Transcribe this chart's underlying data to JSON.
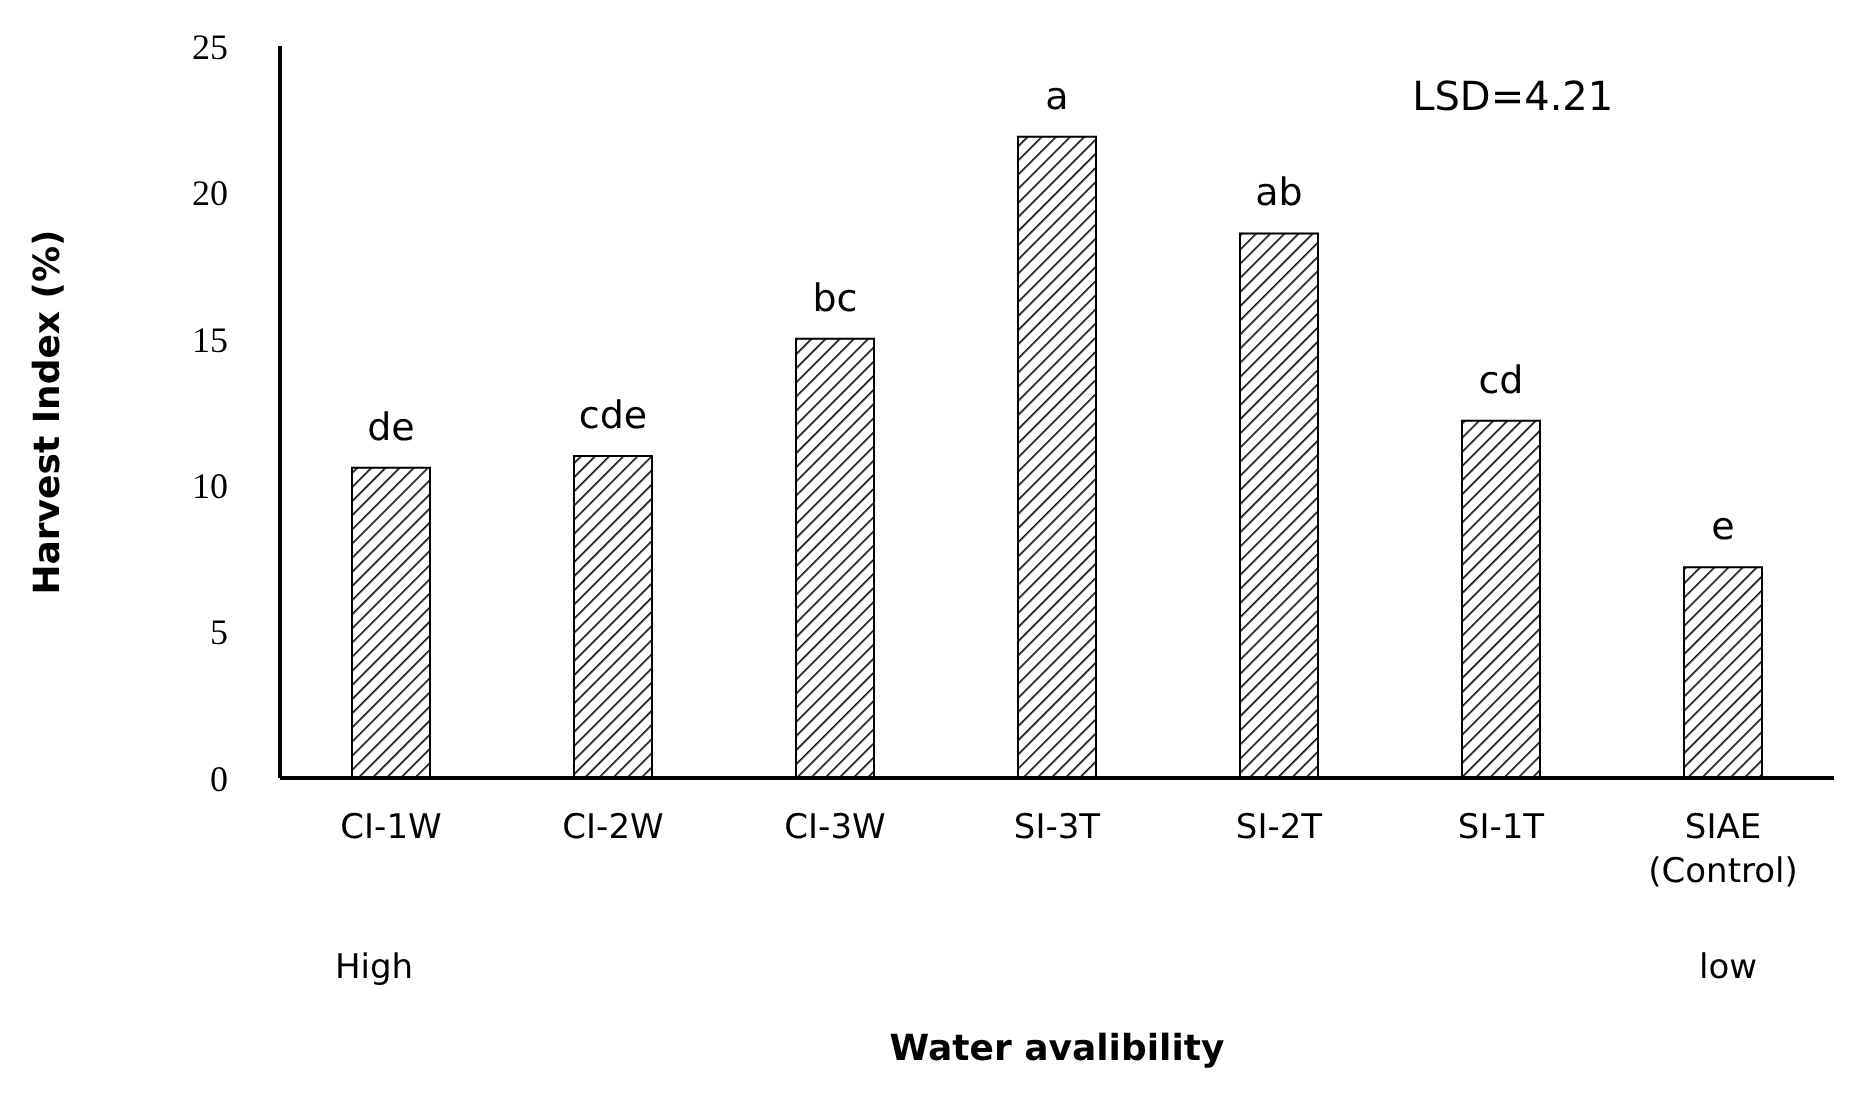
{
  "chart_data": {
    "type": "bar",
    "xlabel": "Water avalibility",
    "ylabel": "Harvest Index (%)",
    "categories": [
      "CI-1W",
      "CI-2W",
      "CI-3W",
      "SI-3T",
      "SI-2T",
      "SI-1T",
      "SIAE (Control)"
    ],
    "values": [
      10.6,
      11.0,
      15.0,
      21.9,
      18.6,
      12.2,
      7.2
    ],
    "color": "#000000",
    "ylim": [
      0,
      25
    ],
    "yticks": [
      0,
      5,
      10,
      15,
      20,
      25
    ],
    "grid": false,
    "annotations": [
      "LSD=4.21",
      "High",
      "low",
      {
        "text": "de",
        "x": "CI-1W",
        "y": 10.6
      },
      {
        "text": "cde",
        "x": "CI-2W",
        "y": 11.0
      },
      {
        "text": "bc",
        "x": "CI-3W",
        "y": 15.0
      },
      {
        "text": "a",
        "x": "SI-3T",
        "y": 21.9
      },
      {
        "text": "ab",
        "x": "SI-2T",
        "y": 18.6
      },
      {
        "text": "cd",
        "x": "SI-1T",
        "y": 12.2
      },
      {
        "text": "e",
        "x": "SIAE (Control)",
        "y": 7.2
      }
    ]
  }
}
